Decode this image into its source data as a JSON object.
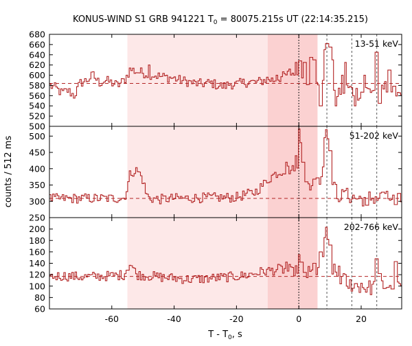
{
  "title": {
    "main": "KONUS-WIND S1 GRB 941221 T",
    "sub": "0",
    "rest": " = 80075.215s UT (22:14:35.215)"
  },
  "ylabel": "counts / 512 ms",
  "xlabel": {
    "main": "T - T",
    "sub": "0",
    "rest": ", s"
  },
  "colors": {
    "curve": "#b22222",
    "band_light": "#fde8e8",
    "band_dark": "#fbd1d1",
    "vline": "#555555"
  },
  "chart_data": {
    "type": "line",
    "xlim": [
      -80,
      33
    ],
    "x_ticks": [
      -60,
      -40,
      -20,
      0,
      20
    ],
    "x_tick_labels": [
      "-60",
      "-40",
      "-20",
      "0",
      "20"
    ],
    "bin_s": 0.512,
    "bands": [
      {
        "x0": -55,
        "x1": -10,
        "shade": "light"
      },
      {
        "x0": -10,
        "x1": 6,
        "shade": "dark"
      }
    ],
    "vlines": [
      {
        "x": 0,
        "style": "dotted"
      },
      {
        "x": 9,
        "style": "dashed"
      },
      {
        "x": 17,
        "style": "dashed"
      },
      {
        "x": 25,
        "style": "dashed"
      }
    ],
    "panels": [
      {
        "name": "13-51 keV",
        "ylim": [
          500,
          680
        ],
        "y_ticks": [
          500,
          520,
          540,
          560,
          580,
          600,
          620,
          640,
          660,
          680
        ],
        "background": 584,
        "anchors": [
          [
            -80,
            580
          ],
          [
            -78,
            575
          ],
          [
            -76,
            565
          ],
          [
            -74,
            570
          ],
          [
            -72,
            560
          ],
          [
            -70,
            585
          ],
          [
            -68,
            590
          ],
          [
            -66,
            600
          ],
          [
            -64,
            585
          ],
          [
            -62,
            590
          ],
          [
            -60,
            585
          ],
          [
            -58,
            580
          ],
          [
            -56,
            590
          ],
          [
            -55,
            600
          ],
          [
            -54,
            612
          ],
          [
            -52,
            607
          ],
          [
            -50,
            605
          ],
          [
            -48,
            602
          ],
          [
            -46,
            600
          ],
          [
            -44,
            597
          ],
          [
            -42,
            596
          ],
          [
            -40,
            594
          ],
          [
            -38,
            590
          ],
          [
            -36,
            588
          ],
          [
            -34,
            585
          ],
          [
            -32,
            583
          ],
          [
            -30,
            584
          ],
          [
            -28,
            585
          ],
          [
            -26,
            580
          ],
          [
            -24,
            578
          ],
          [
            -22,
            583
          ],
          [
            -20,
            582
          ],
          [
            -18,
            585
          ],
          [
            -16,
            587
          ],
          [
            -14,
            586
          ],
          [
            -12,
            588
          ],
          [
            -10,
            593
          ],
          [
            -8,
            590
          ],
          [
            -6,
            595
          ],
          [
            -4,
            600
          ],
          [
            -2,
            605
          ],
          [
            0,
            590
          ],
          [
            2,
            592
          ],
          [
            4,
            595
          ],
          [
            6,
            590
          ],
          [
            8,
            590
          ],
          [
            10,
            575
          ],
          [
            12,
            565
          ],
          [
            14,
            570
          ],
          [
            16,
            575
          ],
          [
            18,
            565
          ],
          [
            20,
            567
          ],
          [
            22,
            570
          ],
          [
            24,
            572
          ],
          [
            26,
            578
          ],
          [
            28,
            575
          ],
          [
            30,
            570
          ],
          [
            32,
            568
          ]
        ],
        "spikes": [
          [
            -48,
            620
          ],
          [
            -7,
            600
          ],
          [
            -3,
            612
          ],
          [
            -1,
            625
          ],
          [
            0.5,
            628
          ],
          [
            2,
            625
          ],
          [
            4,
            635
          ],
          [
            5,
            630
          ],
          [
            7,
            540
          ],
          [
            8,
            590
          ],
          [
            8.5,
            650
          ],
          [
            9,
            662
          ],
          [
            10,
            655
          ],
          [
            11,
            630
          ],
          [
            12,
            540
          ],
          [
            14,
            600
          ],
          [
            15,
            625
          ],
          [
            18,
            540
          ],
          [
            21,
            600
          ],
          [
            25,
            645
          ],
          [
            26,
            545
          ],
          [
            29,
            610
          ]
        ]
      },
      {
        "name": "51-202 keV",
        "ylim": [
          250,
          530
        ],
        "y_ticks": [
          250,
          300,
          350,
          400,
          450,
          500
        ],
        "background": 309,
        "anchors": [
          [
            -80,
            308
          ],
          [
            -70,
            309
          ],
          [
            -60,
            309
          ],
          [
            -56,
            310
          ],
          [
            -55,
            340
          ],
          [
            -54,
            388
          ],
          [
            -52,
            395
          ],
          [
            -51,
            385
          ],
          [
            -50,
            365
          ],
          [
            -49,
            325
          ],
          [
            -48,
            310
          ],
          [
            -45,
            306
          ],
          [
            -40,
            309
          ],
          [
            -30,
            311
          ],
          [
            -20,
            312
          ],
          [
            -18,
            318
          ],
          [
            -16,
            323
          ],
          [
            -14,
            328
          ],
          [
            -12,
            345
          ],
          [
            -10,
            365
          ],
          [
            -8,
            382
          ],
          [
            -6,
            390
          ],
          [
            -4,
            398
          ],
          [
            -2,
            395
          ],
          [
            -1,
            415
          ],
          [
            0,
            385
          ],
          [
            1,
            345
          ],
          [
            2,
            340
          ],
          [
            3,
            345
          ],
          [
            4,
            350
          ],
          [
            5,
            345
          ],
          [
            6,
            348
          ],
          [
            7,
            365
          ],
          [
            8,
            420
          ],
          [
            9,
            470
          ],
          [
            10,
            390
          ],
          [
            11,
            345
          ],
          [
            12,
            325
          ],
          [
            14,
            315
          ],
          [
            16,
            318
          ],
          [
            18,
            310
          ],
          [
            20,
            308
          ],
          [
            22,
            310
          ],
          [
            25,
            312
          ],
          [
            28,
            308
          ],
          [
            32,
            310
          ]
        ],
        "spikes": [
          [
            -4,
            420
          ],
          [
            -1,
            440
          ],
          [
            0.3,
            522
          ],
          [
            0.8,
            480
          ],
          [
            1.4,
            420
          ],
          [
            2.5,
            360
          ],
          [
            5,
            368
          ],
          [
            6,
            372
          ],
          [
            8.5,
            495
          ],
          [
            9,
            520
          ],
          [
            9.5,
            492
          ],
          [
            10,
            455
          ],
          [
            12,
            352
          ],
          [
            15,
            333
          ],
          [
            22,
            288
          ],
          [
            27,
            328
          ],
          [
            31,
            290
          ]
        ]
      },
      {
        "name": "202-766 keV",
        "ylim": [
          60,
          220
        ],
        "y_ticks": [
          60,
          80,
          100,
          120,
          140,
          160,
          180,
          200
        ],
        "background": 117,
        "anchors": [
          [
            -80,
            117
          ],
          [
            -75,
            118
          ],
          [
            -70,
            116
          ],
          [
            -65,
            117
          ],
          [
            -60,
            118
          ],
          [
            -56,
            120
          ],
          [
            -55,
            132
          ],
          [
            -54,
            140
          ],
          [
            -53,
            130
          ],
          [
            -52,
            120
          ],
          [
            -48,
            118
          ],
          [
            -45,
            116
          ],
          [
            -40,
            114
          ],
          [
            -35,
            112
          ],
          [
            -30,
            113
          ],
          [
            -25,
            115
          ],
          [
            -20,
            117
          ],
          [
            -18,
            118
          ],
          [
            -16,
            120
          ],
          [
            -12,
            125
          ],
          [
            -8,
            128
          ],
          [
            -6,
            130
          ],
          [
            -4,
            127
          ],
          [
            -2,
            125
          ],
          [
            0,
            130
          ],
          [
            2,
            120
          ],
          [
            4,
            122
          ],
          [
            6,
            125
          ],
          [
            7,
            132
          ],
          [
            8,
            160
          ],
          [
            9,
            200
          ],
          [
            10,
            150
          ],
          [
            11,
            128
          ],
          [
            12,
            120
          ],
          [
            14,
            112
          ],
          [
            16,
            105
          ],
          [
            18,
            102
          ],
          [
            20,
            100
          ],
          [
            22,
            97
          ],
          [
            24,
            98
          ],
          [
            26,
            102
          ],
          [
            28,
            100
          ],
          [
            30,
            105
          ],
          [
            32,
            100
          ]
        ],
        "spikes": [
          [
            -4,
            142
          ],
          [
            -3,
            138
          ],
          [
            0.3,
            155
          ],
          [
            1,
            142
          ],
          [
            2,
            124
          ],
          [
            5,
            140
          ],
          [
            7,
            160
          ],
          [
            8.5,
            185
          ],
          [
            9,
            203
          ],
          [
            9.5,
            182
          ],
          [
            10,
            172
          ],
          [
            13,
            135
          ],
          [
            16,
            96
          ],
          [
            20,
            105
          ],
          [
            25,
            148
          ],
          [
            26,
            122
          ],
          [
            30,
            95
          ],
          [
            31,
            143
          ]
        ]
      }
    ]
  }
}
